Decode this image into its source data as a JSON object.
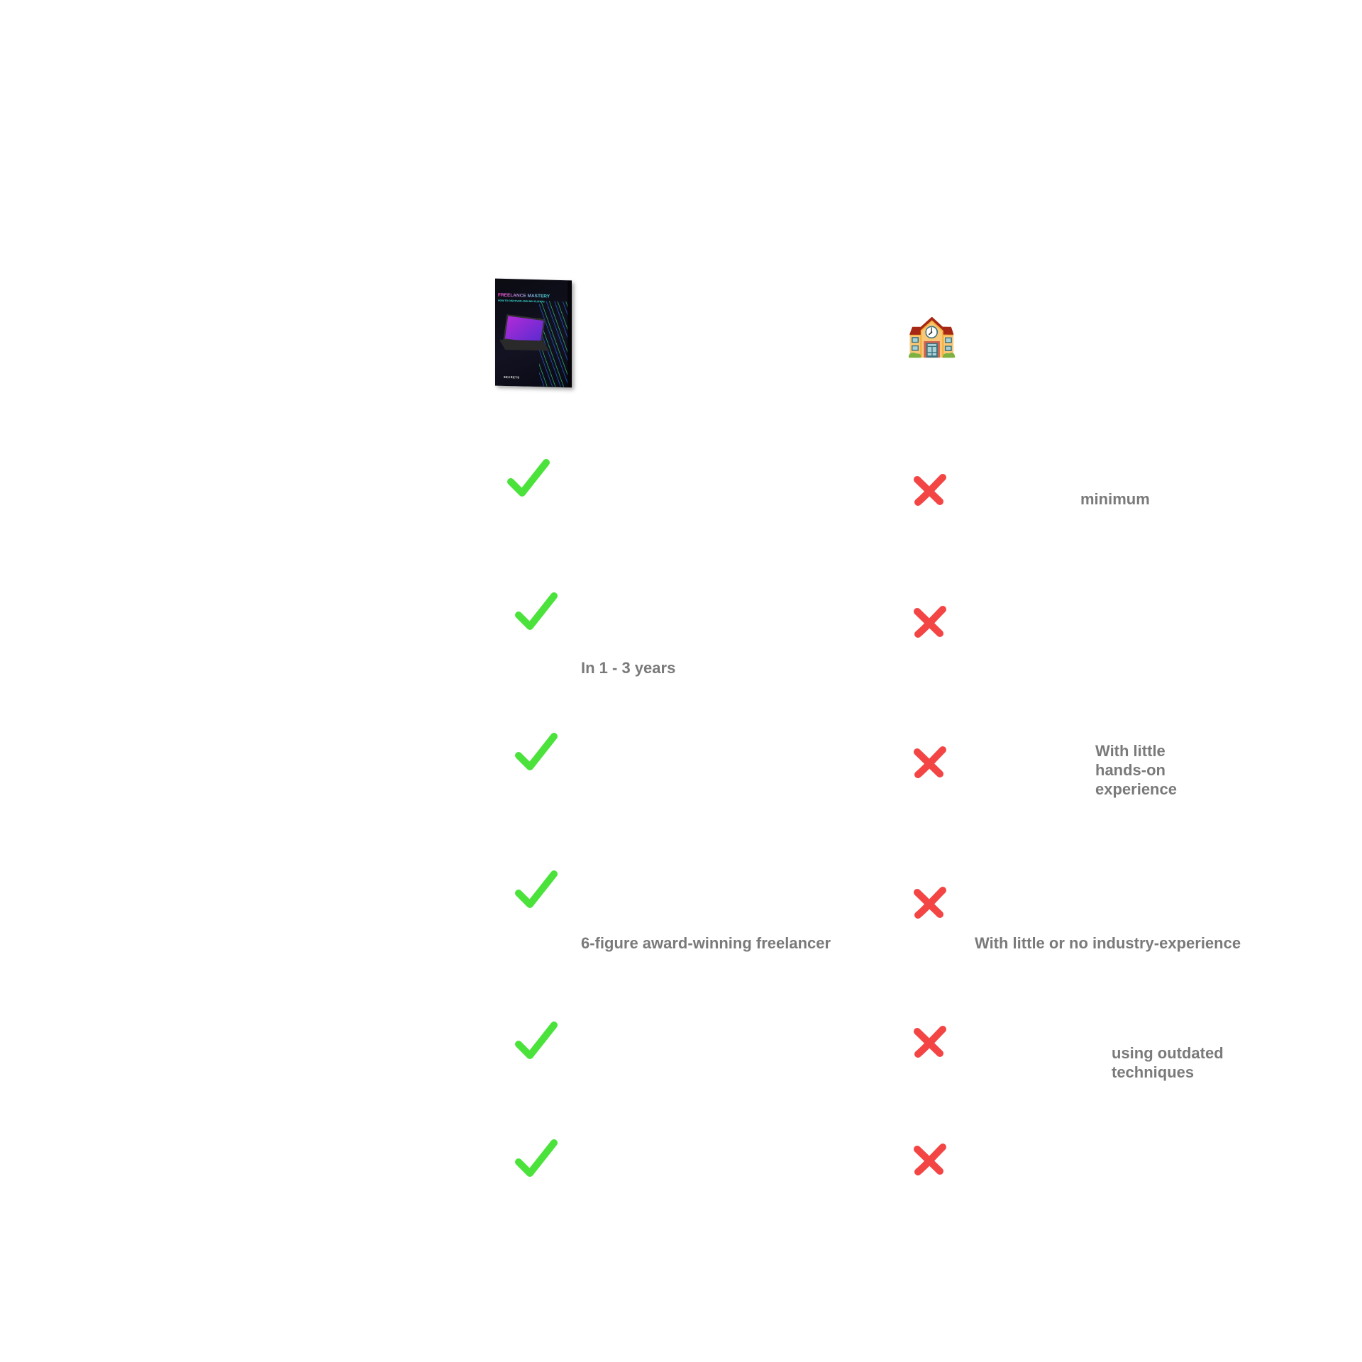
{
  "header": {
    "product_box": {
      "title": "FREELANCE MASTERY",
      "subtitle": "HOW TO DISCOVER AND WIN CLIENTS",
      "footer": "SECRETS"
    },
    "school_icon": "school-building-emoji"
  },
  "colors": {
    "check": "#4be33b",
    "cross": "#f44545",
    "text": "#7a7a7a"
  },
  "rows": [
    {
      "left_text": "",
      "right_text": "minimum"
    },
    {
      "left_text": "In 1 - 3 years",
      "right_text": ""
    },
    {
      "left_text": "",
      "right_text_lines": [
        "With little",
        "hands-on",
        "experience"
      ]
    },
    {
      "left_text": "6-figure award-winning freelancer",
      "right_text": "With little or no industry-experience"
    },
    {
      "left_text": "",
      "right_text_lines": [
        "using outdated",
        "techniques"
      ]
    },
    {
      "left_text": "",
      "right_text": ""
    }
  ]
}
